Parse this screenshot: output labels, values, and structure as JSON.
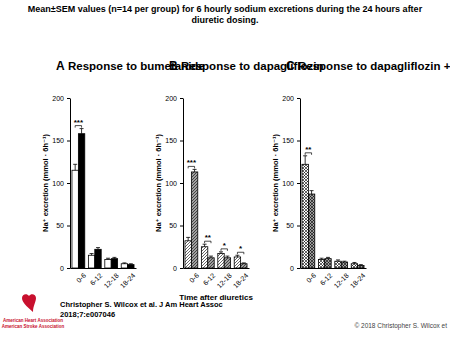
{
  "title": "Mean±SEM values (n=14 per group) for 6 hourly sodium excretions during the 24 hours after diuretic dosing.",
  "chart_data": [
    {
      "type": "bar",
      "panel": "A",
      "title": "Response to bumetanide",
      "ylabel": "Na⁺ excretion (mmol · 6h⁻¹)",
      "categories": [
        "0-6",
        "6-12",
        "12-18",
        "18-24"
      ],
      "series": [
        {
          "color": "#ffffff",
          "values": [
            115,
            15,
            10,
            5
          ],
          "errors": [
            7,
            2,
            1.5,
            1
          ]
        },
        {
          "color": "#000000",
          "values": [
            158,
            22,
            11,
            4
          ],
          "errors": [
            6,
            2,
            1.5,
            1
          ]
        }
      ],
      "ylim": [
        0,
        200
      ],
      "yticks": [
        0,
        50,
        100,
        150,
        200
      ],
      "annotations": [
        {
          "text": "***",
          "x": "0-6"
        }
      ]
    },
    {
      "type": "bar",
      "panel": "B",
      "title": "Response to dapagliflozin",
      "ylabel": "Na⁺ excretion (mmol · 6h⁻¹)",
      "xlabel": "Time after diuretics",
      "categories": [
        "0-6",
        "6-12",
        "12-18",
        "18-24"
      ],
      "series": [
        {
          "color": "#ffffff",
          "values": [
            32,
            25,
            17,
            13
          ],
          "errors": [
            4,
            3,
            2,
            2
          ]
        },
        {
          "color": "#a0a0a0",
          "values": [
            113,
            12,
            12,
            5
          ],
          "errors": [
            3,
            2,
            2,
            1
          ]
        }
      ],
      "ylim": [
        0,
        200
      ],
      "yticks": [
        0,
        50,
        100,
        150,
        200
      ],
      "annotations": [
        {
          "text": "***",
          "x": "0-6"
        },
        {
          "text": "**",
          "x": "6-12"
        },
        {
          "text": "*",
          "x": "12-18"
        },
        {
          "text": "*",
          "x": "18-24"
        }
      ]
    },
    {
      "type": "bar",
      "panel": "C",
      "title": "Response to dapagliflozin + bumetanide",
      "ylabel": "Na⁺ excretion (mmol · 6h⁻¹)",
      "categories": [
        "0-6",
        "6-12",
        "12-18",
        "18-24"
      ],
      "series": [
        {
          "color": "#ffffff",
          "values": [
            122,
            10,
            8,
            5
          ],
          "errors": [
            10,
            1.5,
            1.5,
            1.5
          ]
        },
        {
          "color": "#a0a0a0",
          "values": [
            87,
            11,
            7,
            3
          ],
          "errors": [
            4,
            1.5,
            1,
            1
          ]
        }
      ],
      "ylim": [
        0,
        200
      ],
      "yticks": [
        0,
        50,
        100,
        150,
        200
      ],
      "annotations": [
        {
          "text": "**",
          "x": "0-6"
        }
      ]
    }
  ],
  "citation": [
    "Christopher S. Wilcox et al. J Am Heart Assoc",
    "2018;7:e007046"
  ],
  "logo": [
    "American Heart Association",
    "American Stroke Association"
  ],
  "copyright": "© 2018 Christopher S. Wilcox et"
}
